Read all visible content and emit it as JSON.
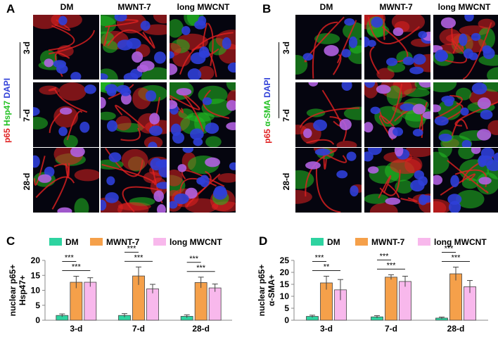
{
  "panels": {
    "A": {
      "label": "A",
      "columns": [
        "DM",
        "MWNT-7",
        "long MWCNT"
      ],
      "rows": [
        "3-d",
        "7-d",
        "28-d"
      ],
      "stain": {
        "p65": "p65",
        "marker": "Hsp47",
        "dapi": "DAPI"
      },
      "colors": {
        "p65": "#e02020",
        "marker": "#22c022",
        "dapi": "#2f3fd8"
      }
    },
    "B": {
      "label": "B",
      "columns": [
        "DM",
        "MWNT-7",
        "long MWCNT"
      ],
      "rows": [
        "3-d",
        "7-d",
        "28-d"
      ],
      "stain": {
        "p65": "p65",
        "marker": "α-SMA",
        "dapi": "DAPI"
      },
      "colors": {
        "p65": "#e02020",
        "marker": "#22c022",
        "dapi": "#2f3fd8"
      }
    },
    "C": {
      "label": "C"
    },
    "D": {
      "label": "D"
    }
  },
  "chart_data": [
    {
      "type": "bar",
      "panel": "C",
      "ylabel": "nuclear p65+ Hsp47+",
      "ylim": [
        0,
        20
      ],
      "yticks": [
        0,
        5,
        10,
        15,
        20
      ],
      "categories": [
        "3-d",
        "7-d",
        "28-d"
      ],
      "legend": [
        "DM",
        "MWNT-7",
        "long MWCNT"
      ],
      "colors": [
        "#2ed3a0",
        "#f5a04a",
        "#f8b8ec"
      ],
      "series": [
        {
          "name": "DM",
          "values": [
            1.6,
            1.6,
            1.3
          ],
          "errors": [
            0.5,
            0.6,
            0.5
          ]
        },
        {
          "name": "MWNT-7",
          "values": [
            12.7,
            14.8,
            12.6
          ],
          "errors": [
            2.0,
            3.0,
            1.8
          ]
        },
        {
          "name": "long MWCNT",
          "values": [
            12.7,
            10.5,
            10.8
          ],
          "errors": [
            1.5,
            1.5,
            1.3
          ]
        }
      ],
      "significance": [
        {
          "category": 0,
          "pair": "DM-MWNT-7",
          "label": "***"
        },
        {
          "category": 0,
          "pair": "DM-long MWCNT",
          "label": "***"
        },
        {
          "category": 1,
          "pair": "DM-MWNT-7",
          "label": "***"
        },
        {
          "category": 1,
          "pair": "DM-long MWCNT",
          "label": "***"
        },
        {
          "category": 2,
          "pair": "DM-MWNT-7",
          "label": "***"
        },
        {
          "category": 2,
          "pair": "DM-long MWCNT",
          "label": "***"
        }
      ]
    },
    {
      "type": "bar",
      "panel": "D",
      "ylabel": "nuclear p65+ α-SMA+",
      "ylim": [
        0,
        25
      ],
      "yticks": [
        0,
        5,
        10,
        15,
        20,
        25
      ],
      "categories": [
        "3-d",
        "7-d",
        "28-d"
      ],
      "legend": [
        "DM",
        "MWNT-7",
        "long MWCNT"
      ],
      "colors": [
        "#2ed3a0",
        "#f5a04a",
        "#f8b8ec"
      ],
      "series": [
        {
          "name": "DM",
          "values": [
            1.6,
            1.4,
            0.9
          ],
          "errors": [
            0.5,
            0.5,
            0.4
          ]
        },
        {
          "name": "MWNT-7",
          "values": [
            15.6,
            18.0,
            19.4
          ],
          "errors": [
            2.8,
            1.0,
            2.8
          ]
        },
        {
          "name": "long MWCNT",
          "values": [
            12.7,
            16.2,
            14.0
          ],
          "errors": [
            4.3,
            2.2,
            2.6
          ]
        }
      ],
      "significance": [
        {
          "category": 0,
          "pair": "DM-MWNT-7",
          "label": "***"
        },
        {
          "category": 0,
          "pair": "DM-long MWCNT",
          "label": "**"
        },
        {
          "category": 1,
          "pair": "DM-MWNT-7",
          "label": "***"
        },
        {
          "category": 1,
          "pair": "DM-long MWCNT",
          "label": "***"
        },
        {
          "category": 2,
          "pair": "DM-MWNT-7",
          "label": "***"
        },
        {
          "category": 2,
          "pair": "DM-long MWCNT",
          "label": "***"
        }
      ]
    }
  ]
}
